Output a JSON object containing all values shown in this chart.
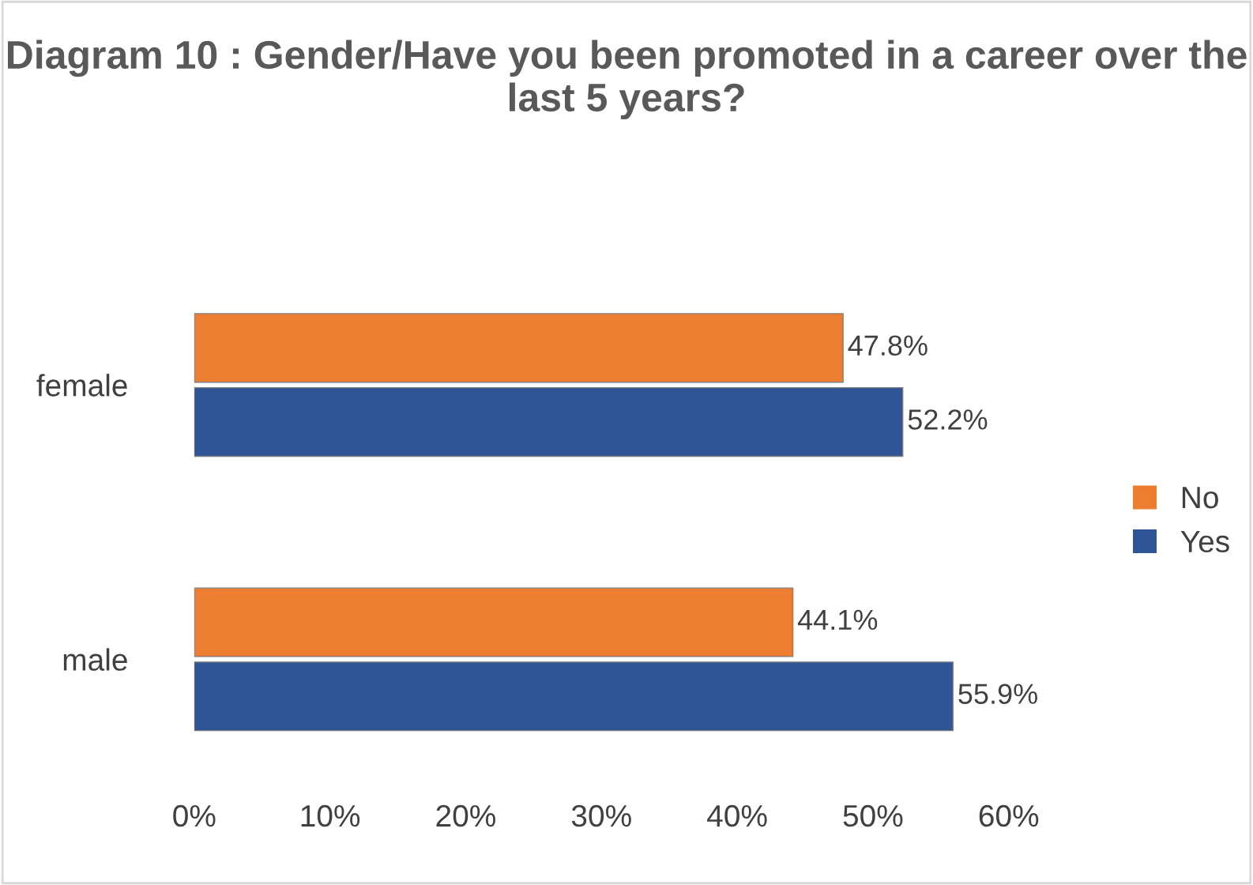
{
  "chart_data": {
    "type": "bar",
    "orientation": "horizontal",
    "title": "Diagram 10 : Gender/Have you been promoted in a career over the last 5 years?",
    "categories": [
      "female",
      "male"
    ],
    "series": [
      {
        "name": "No",
        "color": "#ed7d31",
        "values": [
          47.8,
          44.1
        ],
        "value_labels": [
          "47.8%",
          "44.1%"
        ]
      },
      {
        "name": "Yes",
        "color": "#2f5597",
        "values": [
          52.2,
          55.9
        ],
        "value_labels": [
          "52.2%",
          "55.9%"
        ]
      }
    ],
    "xlim": [
      0,
      60
    ],
    "xticks": [
      {
        "value": 0,
        "label": "0%"
      },
      {
        "value": 10,
        "label": "10%"
      },
      {
        "value": 20,
        "label": "20%"
      },
      {
        "value": 30,
        "label": "30%"
      },
      {
        "value": 40,
        "label": "40%"
      },
      {
        "value": 50,
        "label": "50%"
      },
      {
        "value": 60,
        "label": "60%"
      }
    ],
    "grid": false,
    "legend": "right"
  }
}
